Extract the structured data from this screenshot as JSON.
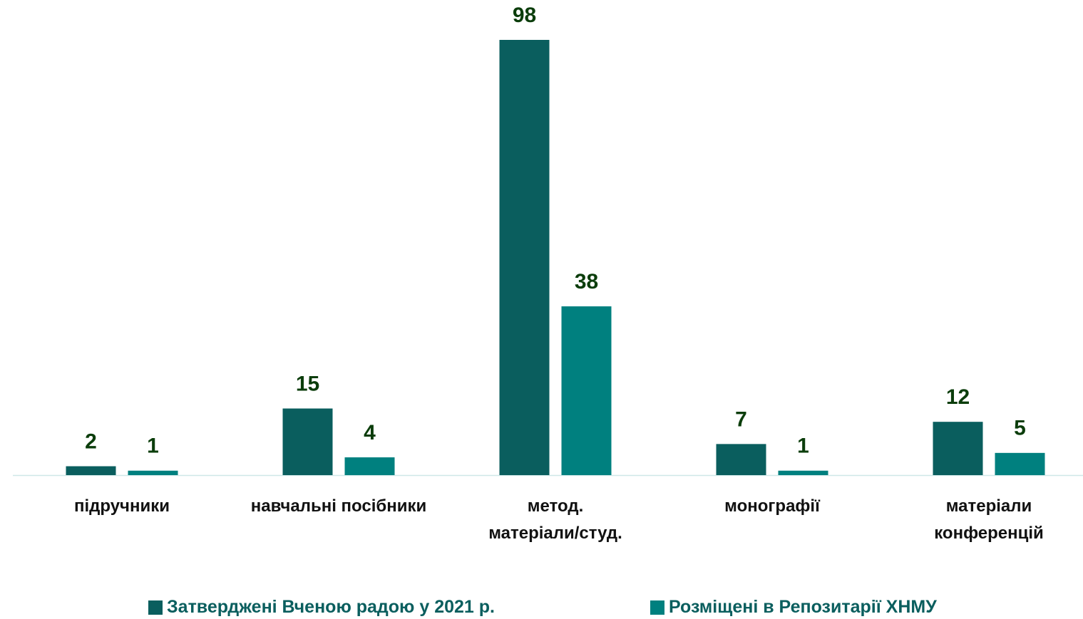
{
  "chart_data": {
    "type": "bar",
    "categories": [
      "підручники",
      "навчальні посібники",
      "метод.\nматеріали/студ.",
      "монографії",
      "матеріали\nконференцій"
    ],
    "series": [
      {
        "name": "Затверджені Вченою радою у 2021 р.",
        "color": "#0a5e5e",
        "values": [
          2,
          15,
          98,
          7,
          12
        ]
      },
      {
        "name": "Розміщені в Репозитарії ХНМУ",
        "color": "#00807f",
        "values": [
          1,
          4,
          38,
          1,
          5
        ]
      }
    ]
  }
}
